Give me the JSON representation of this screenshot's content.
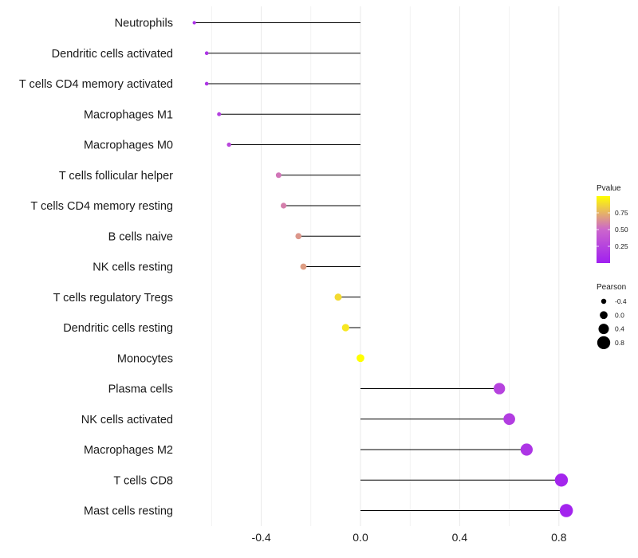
{
  "chart_data": {
    "type": "lollipop",
    "xlim": [
      -0.7,
      0.9
    ],
    "x_ticks": [
      {
        "value": -0.4,
        "label": "-0.4"
      },
      {
        "value": 0.0,
        "label": "0.0"
      },
      {
        "value": 0.4,
        "label": "0.4"
      },
      {
        "value": 0.8,
        "label": "0.8"
      }
    ],
    "minor_gridlines": [
      -0.6,
      -0.2,
      0.2,
      0.6
    ],
    "categories": [
      {
        "label": "Neutrophils",
        "pearson": -0.67,
        "pvalue": 0.12
      },
      {
        "label": "Dendritic cells activated",
        "pearson": -0.62,
        "pvalue": 0.15
      },
      {
        "label": "T cells CD4 memory activated",
        "pearson": -0.62,
        "pvalue": 0.15
      },
      {
        "label": "Macrophages M1",
        "pearson": -0.57,
        "pvalue": 0.22
      },
      {
        "label": "Macrophages M0",
        "pearson": -0.53,
        "pvalue": 0.28
      },
      {
        "label": "T cells follicular helper",
        "pearson": -0.33,
        "pvalue": 0.55
      },
      {
        "label": "T cells CD4 memory resting",
        "pearson": -0.31,
        "pvalue": 0.58
      },
      {
        "label": "B cells naive",
        "pearson": -0.25,
        "pvalue": 0.66
      },
      {
        "label": "NK cells resting",
        "pearson": -0.23,
        "pvalue": 0.68
      },
      {
        "label": "T cells regulatory  Tregs",
        "pearson": -0.09,
        "pvalue": 0.88
      },
      {
        "label": "Dendritic cells resting",
        "pearson": -0.06,
        "pvalue": 0.92
      },
      {
        "label": "Monocytes",
        "pearson": 0.0,
        "pvalue": 1.0
      },
      {
        "label": "Plasma cells",
        "pearson": 0.56,
        "pvalue": 0.25
      },
      {
        "label": "NK cells activated",
        "pearson": 0.6,
        "pvalue": 0.21
      },
      {
        "label": "Macrophages M2",
        "pearson": 0.67,
        "pvalue": 0.15
      },
      {
        "label": "T cells CD8",
        "pearson": 0.81,
        "pvalue": 0.04
      },
      {
        "label": "Mast cells resting",
        "pearson": 0.83,
        "pvalue": 0.03
      }
    ],
    "legend": {
      "color_title": "Pvalue",
      "color_ticks": [
        {
          "value": 0.25,
          "label": "0.25"
        },
        {
          "value": 0.5,
          "label": "0.50"
        },
        {
          "value": 0.75,
          "label": "0.75"
        }
      ],
      "color_range": [
        0.0,
        1.0
      ],
      "size_title": "Pearson",
      "size_entries": [
        {
          "value": -0.4,
          "label": "-0.4"
        },
        {
          "value": 0.0,
          "label": "0.0"
        },
        {
          "value": 0.4,
          "label": "0.4"
        },
        {
          "value": 0.8,
          "label": "0.8"
        }
      ]
    },
    "colors": {
      "low": "#a020f0",
      "mid": "#cc66cc",
      "high": "#ffff00",
      "segment": "#000000",
      "grid": "#ebebeb"
    }
  }
}
